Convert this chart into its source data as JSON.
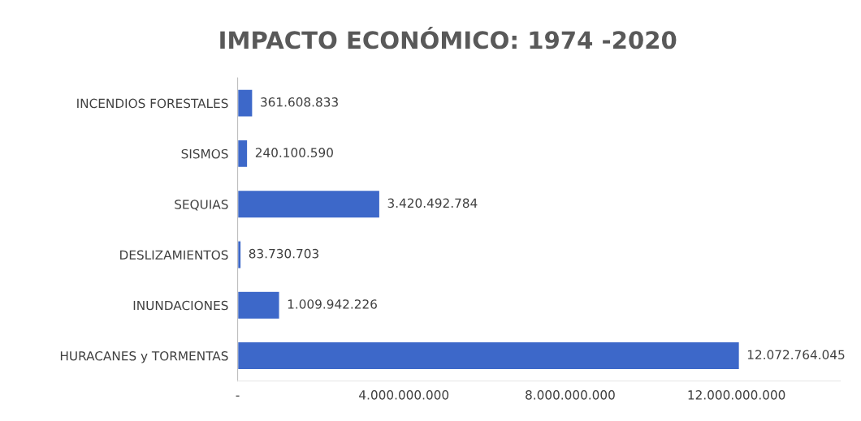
{
  "chart_data": {
    "type": "bar",
    "orientation": "horizontal",
    "title": "IMPACTO ECONÓMICO: 1974 -2020",
    "categories": [
      "INCENDIOS FORESTALES",
      "SISMOS",
      "SEQUIAS",
      "DESLIZAMIENTOS",
      "INUNDACIONES",
      "HURACANES y TORMENTAS"
    ],
    "values": [
      361608833,
      240100590,
      3420492784,
      83730703,
      1009942226,
      12072764045
    ],
    "value_labels": [
      "361.608.833",
      "240.100.590",
      "3.420.492.784",
      "83.730.703",
      "1.009.942.226",
      "12.072.764.045"
    ],
    "color": "#3d68c9",
    "xlim": [
      0,
      14500000000
    ],
    "xticks": [
      {
        "value": 0,
        "label": "-"
      },
      {
        "value": 4000000000,
        "label": "4.000.000.000"
      },
      {
        "value": 8000000000,
        "label": "8.000.000.000"
      },
      {
        "value": 12000000000,
        "label": "12.000.000.000"
      }
    ],
    "grid": false
  }
}
